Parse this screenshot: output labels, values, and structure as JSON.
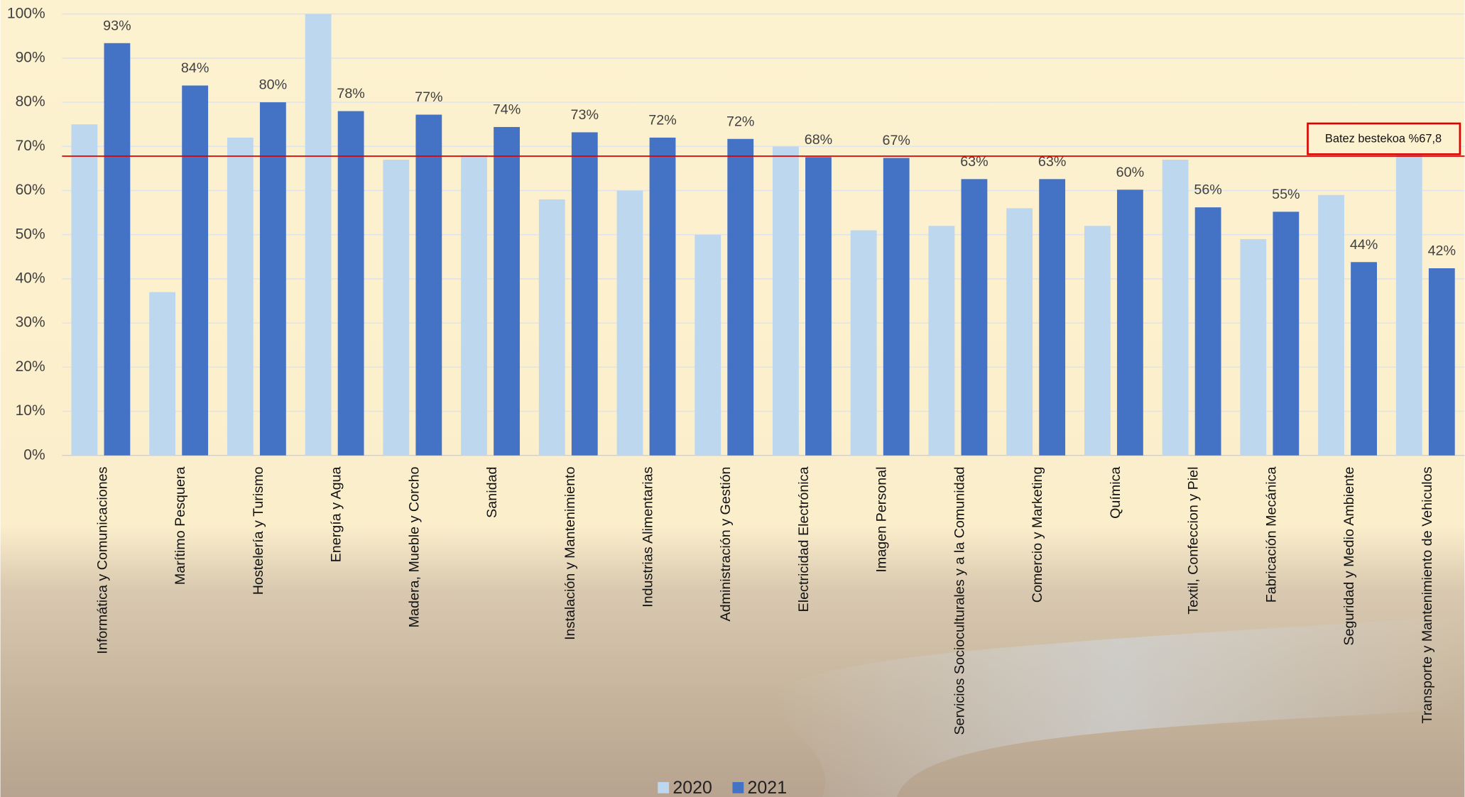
{
  "chart_data": {
    "type": "bar",
    "categories": [
      "Informática y Comunicaciones",
      "Marítimo Pesquera",
      "Hostelería y Turismo",
      "Energía y Agua",
      "Madera, Mueble y Corcho",
      "Sanidad",
      "Instalación y Mantenimiento",
      "Industrias Alimentarias",
      "Administración y Gestión",
      "Electricidad Electrónica",
      "Imagen Personal",
      "Servicios Socioculturales y a la Comunidad",
      "Comercio y Marketing",
      "Química",
      "Textil, Confeccion y Piel",
      "Fabricación Mecánica",
      "Seguridad y Medio Ambiente",
      "Transporte y Mantenimiento de Vehiculos"
    ],
    "series": [
      {
        "name": "2020",
        "color": "#bdd7ee",
        "values": [
          75,
          37,
          72,
          100,
          67,
          68,
          58,
          60,
          50,
          70,
          51,
          52,
          56,
          52,
          67,
          49,
          59,
          72
        ]
      },
      {
        "name": "2021",
        "color": "#4472c4",
        "values": [
          93.4,
          83.8,
          80,
          78,
          77.2,
          74.4,
          73.2,
          72,
          71.7,
          67.6,
          67.4,
          62.6,
          62.6,
          60.2,
          56.2,
          55.2,
          43.8,
          42.4
        ],
        "value_labels": [
          "93%",
          "84%",
          "80%",
          "78%",
          "77%",
          "74%",
          "73%",
          "72%",
          "72%",
          "68%",
          "67%",
          "63%",
          "63%",
          "60%",
          "56%",
          "55%",
          "44%",
          "42%"
        ]
      }
    ],
    "ylim": [
      0,
      100
    ],
    "yticks": [
      {
        "value": 0,
        "label": "0%"
      },
      {
        "value": 10,
        "label": "10%"
      },
      {
        "value": 20,
        "label": "20%"
      },
      {
        "value": 30,
        "label": "30%"
      },
      {
        "value": 40,
        "label": "40%"
      },
      {
        "value": 50,
        "label": "50%"
      },
      {
        "value": 60,
        "label": "60%"
      },
      {
        "value": 70,
        "label": "70%"
      },
      {
        "value": 80,
        "label": "80%"
      },
      {
        "value": 90,
        "label": "90%"
      },
      {
        "value": 100,
        "label": "100%"
      }
    ],
    "grid": true,
    "reference_line": {
      "value": 67.8,
      "label": "Batez bestekoa %67,8",
      "color": "#e00000"
    },
    "legend": "bottom"
  }
}
